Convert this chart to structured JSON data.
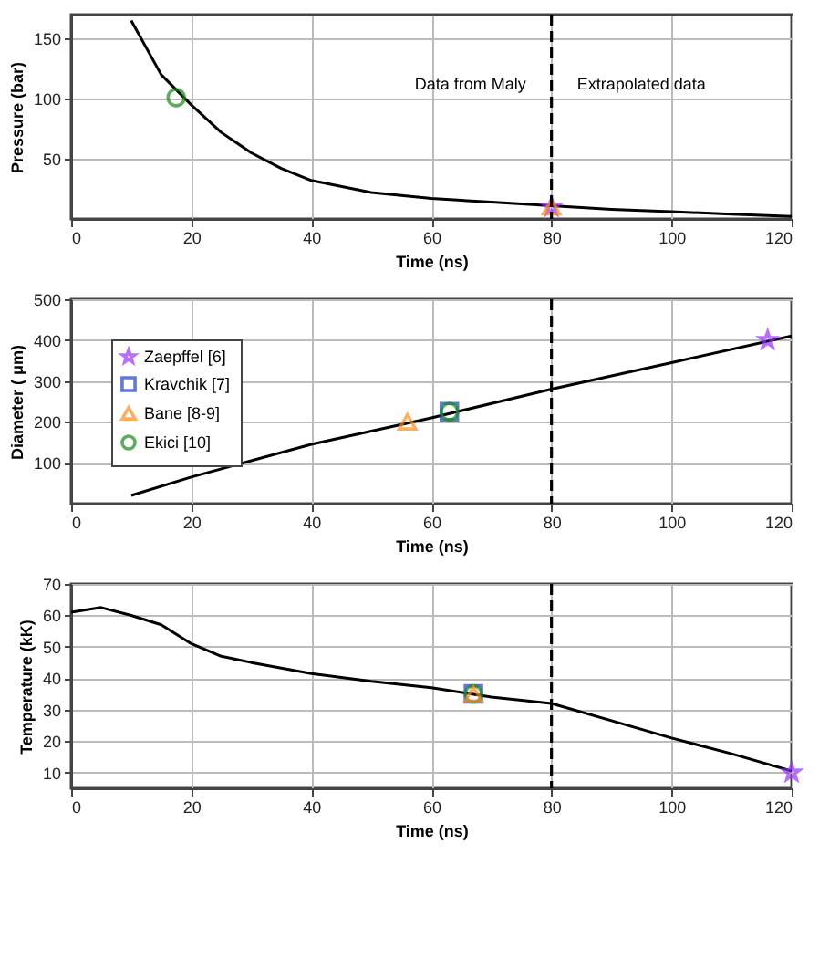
{
  "chart_data": [
    {
      "type": "line",
      "xlabel": "Time (ns)",
      "ylabel": "Pressure (bar)",
      "xlim": [
        0,
        120
      ],
      "xticks": [
        0,
        20,
        40,
        60,
        80,
        100,
        120
      ],
      "ylim": [
        0,
        170
      ],
      "yticks": [
        50,
        100,
        150
      ],
      "grid": true,
      "annotations": [
        "Data from Maly",
        "Extrapolated data"
      ],
      "ref_lines": [
        {
          "axis": "x",
          "value": 80,
          "line_style": "dashed",
          "color": "#000000"
        }
      ],
      "series": [
        {
          "type": "line",
          "color": "#000000",
          "marker": "none",
          "x": [
            10,
            15,
            20,
            25,
            30,
            35,
            40,
            50,
            60,
            70,
            80,
            90,
            100,
            110,
            120
          ],
          "values": [
            165,
            120,
            95,
            72,
            55,
            42,
            32,
            22,
            17,
            14,
            11,
            8,
            6,
            4,
            2
          ]
        },
        {
          "type": "scatter",
          "color": "#9933ff",
          "marker": "star",
          "x": [
            80
          ],
          "values": [
            10
          ]
        },
        {
          "type": "scatter",
          "color": "#ff8c1a",
          "marker": "triangle",
          "x": [
            80
          ],
          "values": [
            10
          ]
        },
        {
          "type": "scatter",
          "color": "#1a8a1a",
          "marker": "circle",
          "x": [
            17.5
          ],
          "values": [
            101
          ]
        }
      ]
    },
    {
      "type": "line",
      "xlabel": "Time (ns)",
      "ylabel": "Diameter ( μm)",
      "xlim": [
        0,
        120
      ],
      "xticks": [
        0,
        20,
        40,
        60,
        80,
        100,
        120
      ],
      "ylim": [
        0,
        500
      ],
      "yticks": [
        100,
        200,
        300,
        400,
        500
      ],
      "grid": true,
      "legend": "top left",
      "ref_lines": [
        {
          "axis": "x",
          "value": 80,
          "line_style": "dashed",
          "color": "#000000"
        }
      ],
      "series": [
        {
          "type": "line",
          "color": "#000000",
          "marker": "none",
          "x": [
            10,
            20,
            40,
            60,
            80,
            100,
            120
          ],
          "values": [
            20,
            65,
            145,
            210,
            280,
            345,
            410
          ]
        },
        {
          "type": "scatter",
          "name": "Zaepffel [6]",
          "color": "#9933ff",
          "marker": "star",
          "x": [
            116
          ],
          "values": [
            400
          ]
        },
        {
          "type": "scatter",
          "name": "Kravchik [7]",
          "color": "#1f3fcc",
          "marker": "square",
          "x": [
            63
          ],
          "values": [
            225
          ]
        },
        {
          "type": "scatter",
          "name": "Bane [8-9]",
          "color": "#ff8c1a",
          "marker": "triangle",
          "x": [
            56
          ],
          "values": [
            200
          ]
        },
        {
          "type": "scatter",
          "name": "Ekici [10]",
          "color": "#1a8a1a",
          "marker": "circle",
          "x": [
            63
          ],
          "values": [
            225
          ]
        }
      ]
    },
    {
      "type": "line",
      "xlabel": "Time (ns)",
      "ylabel": "Temperature (kK)",
      "xlim": [
        0,
        120
      ],
      "xticks": [
        0,
        20,
        40,
        60,
        80,
        100,
        120
      ],
      "ylim": [
        5,
        70
      ],
      "yticks": [
        10,
        20,
        30,
        40,
        50,
        60,
        70
      ],
      "grid": true,
      "ref_lines": [
        {
          "axis": "x",
          "value": 80,
          "line_style": "dashed",
          "color": "#000000"
        }
      ],
      "series": [
        {
          "type": "line",
          "color": "#000000",
          "marker": "none",
          "x": [
            0,
            5,
            10,
            15,
            20,
            25,
            30,
            40,
            50,
            60,
            70,
            80,
            90,
            100,
            110,
            120
          ],
          "values": [
            61,
            62.5,
            60,
            57,
            51,
            47,
            45,
            41.5,
            39,
            37,
            34,
            32,
            26.5,
            21,
            16,
            10.5
          ]
        },
        {
          "type": "scatter",
          "color": "#1f3fcc",
          "marker": "square",
          "x": [
            67
          ],
          "values": [
            35
          ]
        },
        {
          "type": "scatter",
          "color": "#1a8a1a",
          "marker": "circle",
          "x": [
            67
          ],
          "values": [
            35
          ]
        },
        {
          "type": "scatter",
          "color": "#ff8c1a",
          "marker": "triangle",
          "x": [
            67
          ],
          "values": [
            35
          ]
        },
        {
          "type": "scatter",
          "color": "#9933ff",
          "marker": "star",
          "x": [
            120
          ],
          "values": [
            10
          ]
        }
      ]
    }
  ]
}
